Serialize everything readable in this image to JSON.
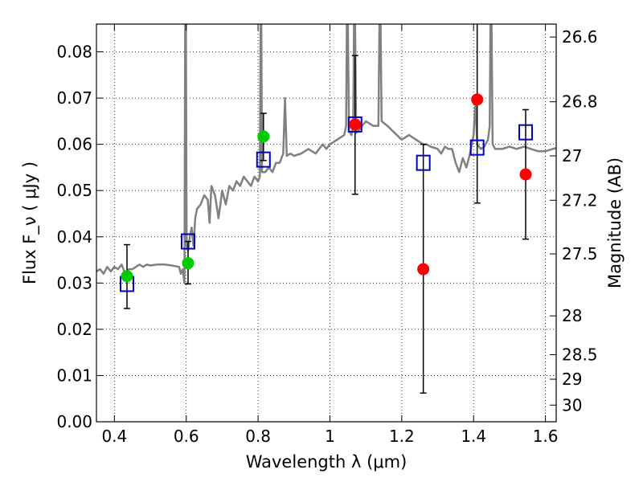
{
  "chart_data": {
    "type": "scatter",
    "xlabel": "Wavelength  λ (μm)",
    "ylabel": "Flux  F_ν  ( μJy )",
    "y2label": "Magnitude (AB)",
    "xlim": [
      0.35,
      1.63
    ],
    "ylim": [
      0.0,
      0.086
    ],
    "x_ticks": [
      0.4,
      0.6,
      0.8,
      1.0,
      1.2,
      1.4,
      1.6
    ],
    "x_tick_labels": [
      "0.4",
      "0.6",
      "0.8",
      "1",
      "1.2",
      "1.4",
      "1.6"
    ],
    "y_ticks": [
      0.0,
      0.01,
      0.02,
      0.03,
      0.04,
      0.05,
      0.06,
      0.07,
      0.08
    ],
    "y_tick_labels": [
      "0.00",
      "0.01",
      "0.02",
      "0.03",
      "0.04",
      "0.05",
      "0.06",
      "0.07",
      "0.08"
    ],
    "y2_ticks": [
      {
        "label": "26.6",
        "flux": 0.0832
      },
      {
        "label": "26.8",
        "flux": 0.0692
      },
      {
        "label": "27",
        "flux": 0.0575
      },
      {
        "label": "27.2",
        "flux": 0.0479
      },
      {
        "label": "27.5",
        "flux": 0.0363
      },
      {
        "label": "28",
        "flux": 0.0229
      },
      {
        "label": "28.5",
        "flux": 0.0145
      },
      {
        "label": "29",
        "flux": 0.0092
      },
      {
        "label": "30",
        "flux": 0.0036
      }
    ],
    "grid": true,
    "series": [
      {
        "kind": "line",
        "color": "#808080",
        "points": [
          [
            0.35,
            0.0325
          ],
          [
            0.36,
            0.033
          ],
          [
            0.37,
            0.032
          ],
          [
            0.38,
            0.0335
          ],
          [
            0.39,
            0.0325
          ],
          [
            0.4,
            0.0335
          ],
          [
            0.41,
            0.033
          ],
          [
            0.42,
            0.034
          ],
          [
            0.43,
            0.032
          ],
          [
            0.44,
            0.033
          ],
          [
            0.45,
            0.033
          ],
          [
            0.46,
            0.0335
          ],
          [
            0.47,
            0.034
          ],
          [
            0.48,
            0.0335
          ],
          [
            0.49,
            0.034
          ],
          [
            0.5,
            0.0338
          ],
          [
            0.52,
            0.034
          ],
          [
            0.54,
            0.034
          ],
          [
            0.56,
            0.0338
          ],
          [
            0.58,
            0.0335
          ],
          [
            0.585,
            0.032
          ],
          [
            0.59,
            0.033
          ],
          [
            0.595,
            0.03
          ],
          [
            0.597,
            0.086
          ],
          [
            0.599,
            0.086
          ],
          [
            0.601,
            0.038
          ],
          [
            0.605,
            0.037
          ],
          [
            0.61,
            0.04
          ],
          [
            0.615,
            0.042
          ],
          [
            0.62,
            0.038
          ],
          [
            0.625,
            0.044
          ],
          [
            0.63,
            0.046
          ],
          [
            0.64,
            0.047
          ],
          [
            0.65,
            0.049
          ],
          [
            0.66,
            0.048
          ],
          [
            0.665,
            0.043
          ],
          [
            0.67,
            0.051
          ],
          [
            0.68,
            0.049
          ],
          [
            0.69,
            0.044
          ],
          [
            0.7,
            0.05
          ],
          [
            0.71,
            0.047
          ],
          [
            0.72,
            0.051
          ],
          [
            0.73,
            0.05
          ],
          [
            0.74,
            0.052
          ],
          [
            0.75,
            0.051
          ],
          [
            0.76,
            0.053
          ],
          [
            0.77,
            0.052
          ],
          [
            0.78,
            0.051
          ],
          [
            0.785,
            0.052
          ],
          [
            0.79,
            0.053
          ],
          [
            0.8,
            0.052
          ],
          [
            0.805,
            0.053
          ],
          [
            0.807,
            0.086
          ],
          [
            0.809,
            0.086
          ],
          [
            0.811,
            0.054
          ],
          [
            0.82,
            0.054
          ],
          [
            0.83,
            0.055
          ],
          [
            0.84,
            0.054
          ],
          [
            0.85,
            0.056
          ],
          [
            0.86,
            0.056
          ],
          [
            0.87,
            0.058
          ],
          [
            0.875,
            0.07
          ],
          [
            0.88,
            0.0575
          ],
          [
            0.89,
            0.058
          ],
          [
            0.9,
            0.0575
          ],
          [
            0.92,
            0.058
          ],
          [
            0.94,
            0.059
          ],
          [
            0.96,
            0.058
          ],
          [
            0.97,
            0.059
          ],
          [
            0.98,
            0.06
          ],
          [
            0.99,
            0.059
          ],
          [
            1.0,
            0.06
          ],
          [
            1.02,
            0.061
          ],
          [
            1.04,
            0.062
          ],
          [
            1.045,
            0.064
          ],
          [
            1.047,
            0.086
          ],
          [
            1.05,
            0.086
          ],
          [
            1.053,
            0.063
          ],
          [
            1.06,
            0.062
          ],
          [
            1.065,
            0.064
          ],
          [
            1.067,
            0.086
          ],
          [
            1.07,
            0.086
          ],
          [
            1.073,
            0.0625
          ],
          [
            1.08,
            0.063
          ],
          [
            1.09,
            0.064
          ],
          [
            1.1,
            0.065
          ],
          [
            1.12,
            0.064
          ],
          [
            1.135,
            0.064
          ],
          [
            1.138,
            0.086
          ],
          [
            1.141,
            0.086
          ],
          [
            1.144,
            0.065
          ],
          [
            1.16,
            0.064
          ],
          [
            1.18,
            0.0625
          ],
          [
            1.2,
            0.061
          ],
          [
            1.22,
            0.062
          ],
          [
            1.24,
            0.061
          ],
          [
            1.26,
            0.06
          ],
          [
            1.27,
            0.06
          ],
          [
            1.28,
            0.0595
          ],
          [
            1.3,
            0.059
          ],
          [
            1.31,
            0.058
          ],
          [
            1.32,
            0.0595
          ],
          [
            1.33,
            0.059
          ],
          [
            1.34,
            0.059
          ],
          [
            1.35,
            0.056
          ],
          [
            1.36,
            0.054
          ],
          [
            1.37,
            0.057
          ],
          [
            1.38,
            0.055
          ],
          [
            1.39,
            0.058
          ],
          [
            1.395,
            0.06
          ],
          [
            1.4,
            0.062
          ],
          [
            1.405,
            0.069
          ],
          [
            1.41,
            0.06
          ],
          [
            1.42,
            0.059
          ],
          [
            1.43,
            0.0595
          ],
          [
            1.44,
            0.061
          ],
          [
            1.445,
            0.064
          ],
          [
            1.447,
            0.086
          ],
          [
            1.45,
            0.086
          ],
          [
            1.453,
            0.06
          ],
          [
            1.46,
            0.059
          ],
          [
            1.48,
            0.059
          ],
          [
            1.5,
            0.0595
          ],
          [
            1.52,
            0.059
          ],
          [
            1.54,
            0.0595
          ],
          [
            1.56,
            0.059
          ],
          [
            1.58,
            0.0585
          ],
          [
            1.6,
            0.0585
          ],
          [
            1.62,
            0.059
          ],
          [
            1.63,
            0.0592
          ]
        ]
      },
      {
        "kind": "scatter",
        "marker": "circle",
        "color": "#00cc00",
        "points": [
          [
            0.435,
            0.0315
          ],
          [
            0.605,
            0.0343
          ],
          [
            0.815,
            0.0617
          ]
        ]
      },
      {
        "kind": "scatter",
        "marker": "circle",
        "color": "#ff0000",
        "points": [
          [
            1.07,
            0.0643
          ],
          [
            1.26,
            0.033
          ],
          [
            1.41,
            0.0697
          ],
          [
            1.545,
            0.0535
          ]
        ]
      },
      {
        "kind": "scatter",
        "marker": "open-square",
        "color": "#0000cc",
        "points": [
          [
            0.435,
            0.0298
          ],
          [
            0.605,
            0.039
          ],
          [
            0.815,
            0.0567
          ],
          [
            1.07,
            0.0643
          ],
          [
            1.26,
            0.056
          ],
          [
            1.41,
            0.0593
          ],
          [
            1.545,
            0.0626
          ]
        ]
      },
      {
        "kind": "errorbar",
        "color": "#000000",
        "bars": [
          {
            "x": 0.435,
            "low": 0.0245,
            "high": 0.0383
          },
          {
            "x": 0.605,
            "low": 0.0298,
            "high": 0.039
          },
          {
            "x": 0.815,
            "low": 0.0565,
            "high": 0.0667
          },
          {
            "x": 1.07,
            "low": 0.0492,
            "high": 0.0792
          },
          {
            "x": 1.26,
            "low": 0.0062,
            "high": 0.06
          },
          {
            "x": 1.41,
            "low": 0.0473,
            "high": 0.086
          },
          {
            "x": 1.545,
            "low": 0.0395,
            "high": 0.0675
          }
        ]
      }
    ]
  }
}
